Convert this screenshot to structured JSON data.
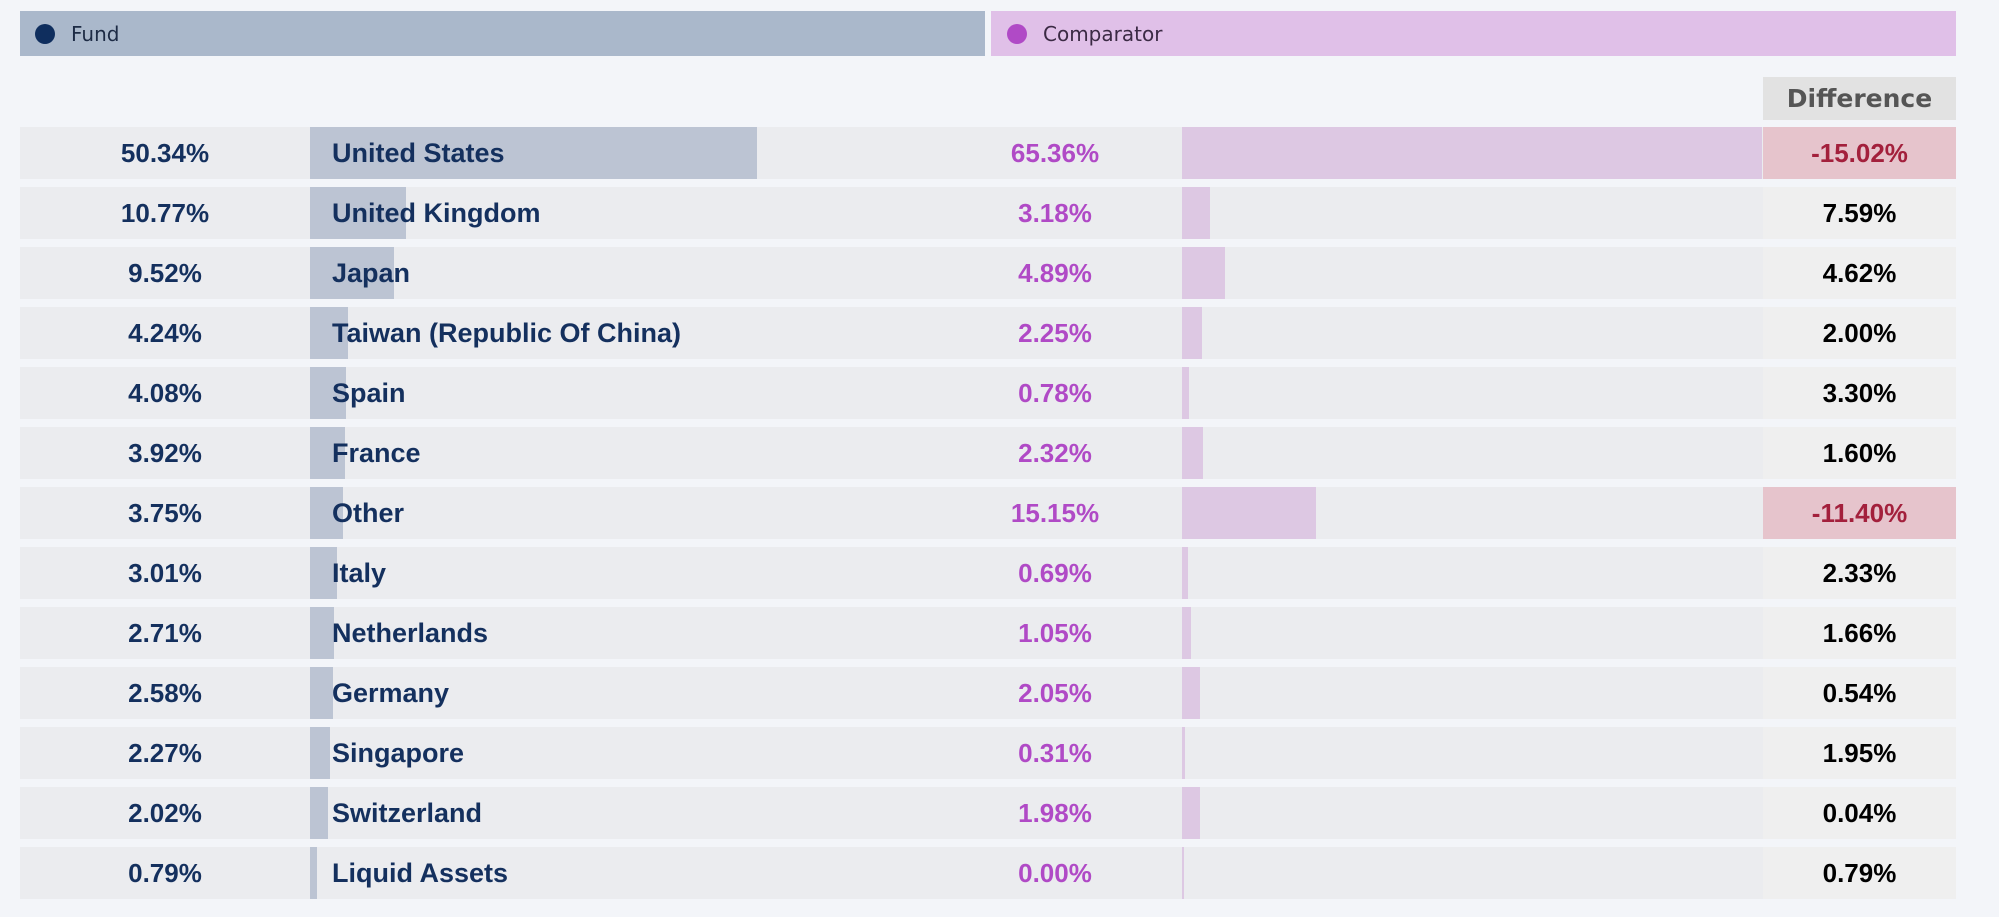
{
  "legend": {
    "fund_label": "Fund",
    "comparator_label": "Comparator"
  },
  "difference_header": "Difference",
  "colors": {
    "fund": "#0f2e5e",
    "comparator": "#b04ac6",
    "negative": "#a3203c"
  },
  "chart_data": {
    "type": "bar",
    "categories": [
      "United States",
      "United Kingdom",
      "Japan",
      "Taiwan (Republic Of China)",
      "Spain",
      "France",
      "Other",
      "Italy",
      "Netherlands",
      "Germany",
      "Singapore",
      "Switzerland",
      "Liquid Assets"
    ],
    "series": [
      {
        "name": "Fund",
        "values": [
          50.34,
          10.77,
          9.52,
          4.24,
          4.08,
          3.92,
          3.75,
          3.01,
          2.71,
          2.58,
          2.27,
          2.02,
          0.79
        ]
      },
      {
        "name": "Comparator",
        "values": [
          65.36,
          3.18,
          4.89,
          2.25,
          0.78,
          2.32,
          15.15,
          0.69,
          1.05,
          2.05,
          0.31,
          1.98,
          0.0
        ]
      },
      {
        "name": "Difference",
        "values": [
          -15.02,
          7.59,
          4.62,
          2.0,
          3.3,
          1.6,
          -11.4,
          2.33,
          1.66,
          0.54,
          1.95,
          0.04,
          0.79
        ]
      }
    ],
    "fund_labels": [
      "50.34%",
      "10.77%",
      "9.52%",
      "4.24%",
      "4.08%",
      "3.92%",
      "3.75%",
      "3.01%",
      "2.71%",
      "2.58%",
      "2.27%",
      "2.02%",
      "0.79%"
    ],
    "comparator_labels": [
      "65.36%",
      "3.18%",
      "4.89%",
      "2.25%",
      "0.78%",
      "2.32%",
      "15.15%",
      "0.69%",
      "1.05%",
      "2.05%",
      "0.31%",
      "1.98%",
      "0.00%"
    ],
    "difference_labels": [
      "-15.02%",
      "7.59%",
      "4.62%",
      "2.00%",
      "3.30%",
      "1.60%",
      "-11.40%",
      "2.33%",
      "1.66%",
      "0.54%",
      "1.95%",
      "0.04%",
      "0.79%"
    ]
  }
}
